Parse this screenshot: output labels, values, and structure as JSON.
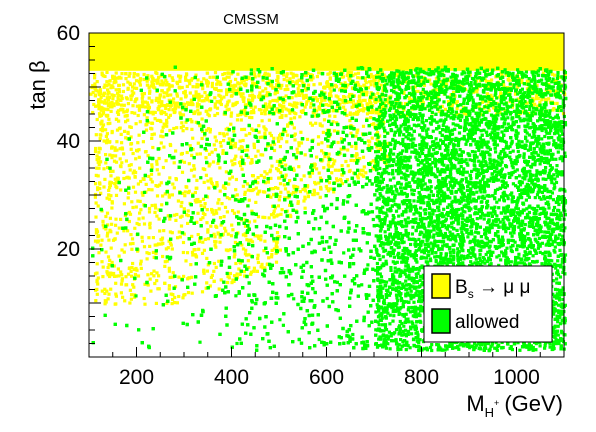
{
  "chart_data": {
    "type": "scatter",
    "title": "CMSSM",
    "xlabel": {
      "main": "M",
      "sub": "H",
      "sup": "+",
      "unit": "(GeV)"
    },
    "ylabel": "tan β",
    "xlim": [
      100,
      1100
    ],
    "ylim": [
      0,
      60
    ],
    "xticks": [
      200,
      400,
      600,
      800,
      1000
    ],
    "yticks": [
      20,
      40,
      60
    ],
    "grid": false,
    "legend_position": "bottom-right",
    "legend": [
      {
        "label_main": "B",
        "label_sub": "s",
        "label_rest": " → μ μ",
        "color": "#ffff00"
      },
      {
        "label_main": "allowed",
        "color": "#00ff00"
      }
    ],
    "series": [
      {
        "color": "#ffff00",
        "region": "B_s -> mu mu excluded",
        "description_points": "dense band tanb >= ~52 for all masses; scattered points for tanb 10-50 concentrated at low mass (M_H+ < ~700 GeV)",
        "density_profile": [
          {
            "x_range": [
              100,
              1100
            ],
            "y_range": [
              52,
              60
            ],
            "density": "full"
          },
          {
            "x_range": [
              120,
              700
            ],
            "y_range": [
              10,
              52
            ],
            "density": "medium"
          }
        ]
      },
      {
        "color": "#00ff00",
        "region": "allowed",
        "description_points": "points cover tanb 2-54; sparse at low mass, dense above ~600 GeV",
        "density_profile": [
          {
            "x_range": [
              100,
              300
            ],
            "y_range": [
              2,
              50
            ],
            "density": "sparse"
          },
          {
            "x_range": [
              300,
              600
            ],
            "y_range": [
              2,
              54
            ],
            "density": "medium"
          },
          {
            "x_range": [
              600,
              1100
            ],
            "y_range": [
              2,
              54
            ],
            "density": "dense"
          }
        ]
      }
    ]
  }
}
